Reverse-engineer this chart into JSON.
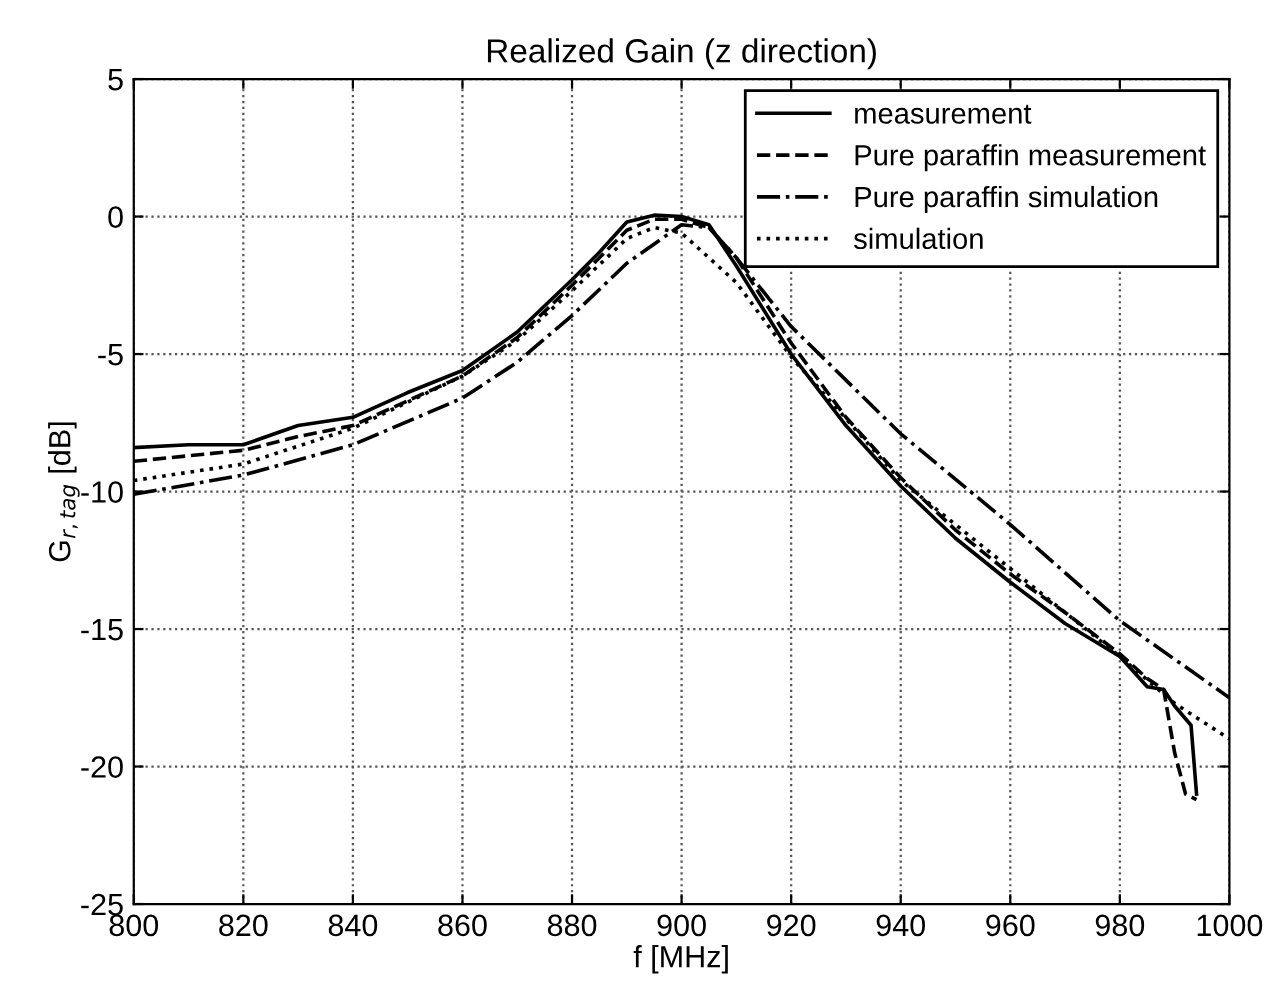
{
  "chart_data": {
    "type": "line",
    "title": "Realized Gain (z direction)",
    "xlabel": "f [MHz]",
    "ylabel": "G$_{r,tag}$ [dB]",
    "xlim": [
      800,
      1000
    ],
    "xticks": [
      800,
      820,
      840,
      860,
      880,
      900,
      920,
      940,
      960,
      980,
      1000
    ],
    "ylim": [
      -25,
      5
    ],
    "yticks": [
      -25,
      -20,
      -15,
      -10,
      -5,
      0,
      5
    ],
    "grid": true,
    "legend": "top right",
    "series": [
      {
        "name": "measurement",
        "color": "#000000",
        "line_style": "solid",
        "x": [
          800,
          810,
          820,
          830,
          840,
          850,
          860,
          870,
          880,
          885,
          890,
          895,
          900,
          905,
          910,
          920,
          930,
          940,
          950,
          960,
          970,
          980,
          985,
          988,
          990,
          993,
          994
        ],
        "values": [
          -8.4,
          -8.3,
          -8.3,
          -7.6,
          -7.3,
          -6.4,
          -5.6,
          -4.2,
          -2.3,
          -1.3,
          -0.2,
          0.05,
          0,
          -0.3,
          -1.8,
          -5.0,
          -7.6,
          -9.8,
          -11.7,
          -13.3,
          -14.8,
          -16.0,
          -17.1,
          -17.2,
          -17.8,
          -18.5,
          -21.0
        ]
      },
      {
        "name": "Pure paraffin measurement",
        "color": "#000000",
        "line_style": "dashed",
        "x": [
          800,
          810,
          820,
          830,
          840,
          850,
          860,
          870,
          880,
          890,
          895,
          900,
          905,
          910,
          920,
          930,
          940,
          950,
          960,
          970,
          980,
          985,
          988,
          990,
          992,
          994
        ],
        "values": [
          -8.9,
          -8.7,
          -8.5,
          -8.0,
          -7.6,
          -6.7,
          -5.8,
          -4.4,
          -2.5,
          -0.5,
          -0.1,
          -0.1,
          -0.4,
          -1.5,
          -4.6,
          -7.3,
          -9.5,
          -11.4,
          -13.0,
          -14.4,
          -15.9,
          -16.8,
          -17.2,
          -19.5,
          -21.0,
          -21.2
        ]
      },
      {
        "name": "Pure paraffin simulation",
        "color": "#000000",
        "line_style": "dashdot",
        "x": [
          800,
          820,
          840,
          860,
          870,
          880,
          890,
          900,
          905,
          910,
          920,
          940,
          960,
          980,
          1000
        ],
        "values": [
          -10.1,
          -9.4,
          -8.3,
          -6.6,
          -5.3,
          -3.6,
          -1.7,
          -0.3,
          -0.4,
          -1.5,
          -4.0,
          -7.9,
          -11.2,
          -14.7,
          -17.5
        ]
      },
      {
        "name": "simulation",
        "color": "#000000",
        "line_style": "dotted",
        "x": [
          800,
          820,
          840,
          860,
          870,
          880,
          890,
          895,
          900,
          910,
          920,
          940,
          960,
          980,
          990,
          1000
        ],
        "values": [
          -9.6,
          -9.0,
          -7.7,
          -5.8,
          -4.5,
          -2.7,
          -0.8,
          -0.4,
          -0.6,
          -2.4,
          -5.1,
          -9.6,
          -12.8,
          -16.0,
          -17.7,
          -19.0
        ]
      }
    ]
  }
}
